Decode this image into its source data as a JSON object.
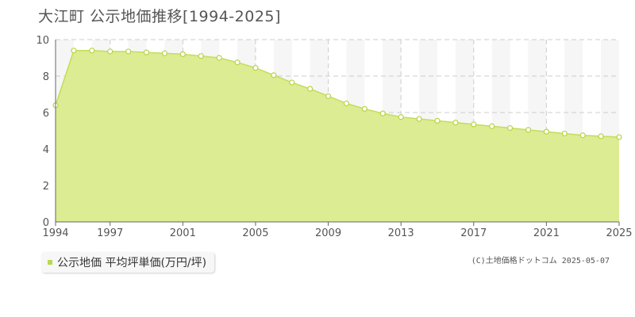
{
  "title": "大江町 公示地価推移[1994-2025]",
  "legend": {
    "label": "公示地価 平均坪単価(万円/坪)"
  },
  "source": "(C)土地価格ドットコム 2025-05-07",
  "colors": {
    "fill": "#dcec92",
    "line": "#c2de5b",
    "marker_stroke": "#b6d444",
    "legend": "#b8d94e"
  },
  "chart_data": {
    "type": "area",
    "title": "大江町 公示地価推移[1994-2025]",
    "xlabel": "",
    "ylabel": "",
    "ylim": [
      0,
      10
    ],
    "yticks": [
      0,
      2,
      4,
      6,
      8,
      10
    ],
    "xticks": [
      1994,
      1997,
      2001,
      2005,
      2009,
      2013,
      2017,
      2021,
      2025
    ],
    "grid": true,
    "legend_position": "bottom-left",
    "series": [
      {
        "name": "公示地価 平均坪単価(万円/坪)",
        "x": [
          1994,
          1995,
          1996,
          1997,
          1998,
          1999,
          2000,
          2001,
          2002,
          2003,
          2004,
          2005,
          2006,
          2007,
          2008,
          2009,
          2010,
          2011,
          2012,
          2013,
          2014,
          2015,
          2016,
          2017,
          2018,
          2019,
          2020,
          2021,
          2022,
          2023,
          2024,
          2025
        ],
        "values": [
          6.4,
          9.4,
          9.4,
          9.35,
          9.35,
          9.3,
          9.25,
          9.2,
          9.1,
          9.0,
          8.75,
          8.45,
          8.05,
          7.65,
          7.3,
          6.9,
          6.5,
          6.2,
          5.95,
          5.75,
          5.65,
          5.55,
          5.45,
          5.35,
          5.25,
          5.15,
          5.05,
          4.95,
          4.85,
          4.75,
          4.7,
          4.65
        ]
      }
    ]
  }
}
